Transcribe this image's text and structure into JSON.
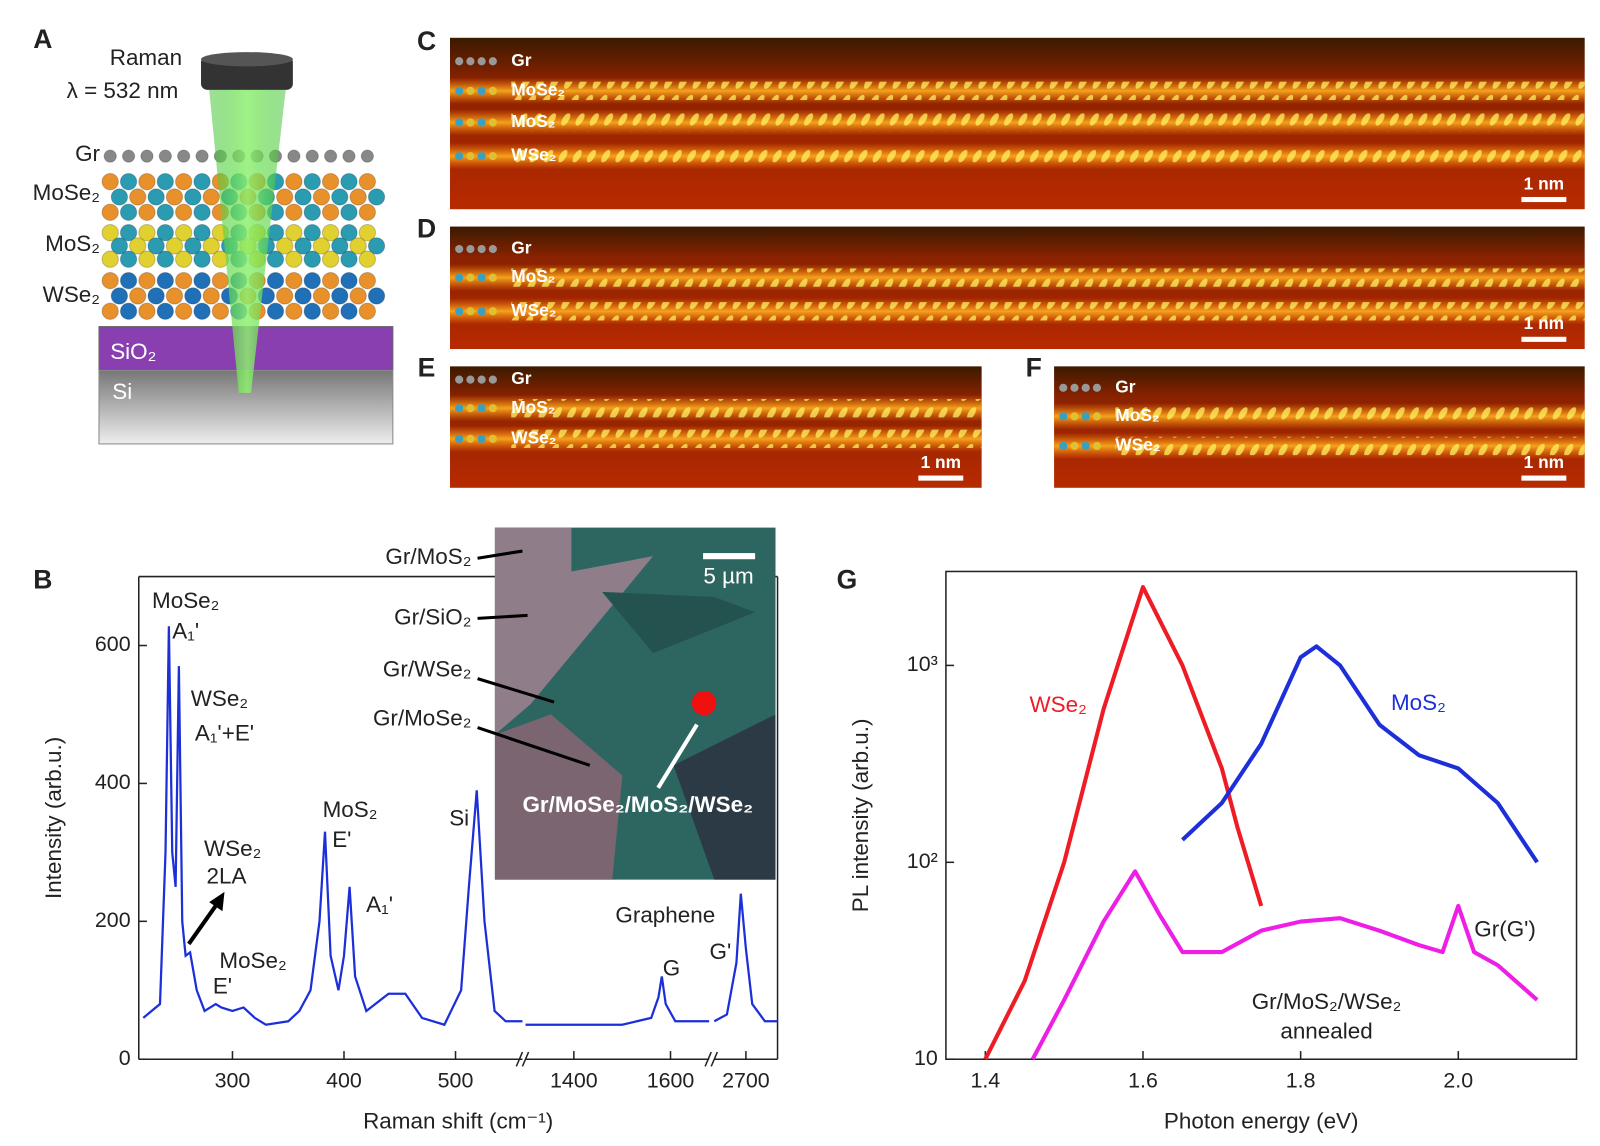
{
  "panel_a": {
    "label": "A",
    "laser": "Raman",
    "wavelength": "λ = 532 nm",
    "layers": [
      "Gr",
      "MoSe₂",
      "MoS₂",
      "WSe₂"
    ],
    "substrate": [
      "SiO₂",
      "Si"
    ]
  },
  "tem_panels": [
    {
      "label": "C",
      "layers": [
        "Gr",
        "MoSe₂",
        "MoS₂",
        "WSe₂"
      ],
      "scale_bar": "1 nm"
    },
    {
      "label": "D",
      "layers": [
        "Gr",
        "MoS₂",
        "WSe₂"
      ],
      "scale_bar": "1 nm"
    },
    {
      "label": "E",
      "layers": [
        "Gr",
        "MoS₂",
        "WSe₂"
      ],
      "scale_bar": "1 nm"
    },
    {
      "label": "F",
      "layers": [
        "Gr",
        "MoS₂",
        "WSe₂"
      ],
      "scale_bar": "1 nm"
    }
  ],
  "chart_data": [
    {
      "type": "line",
      "label": "B",
      "x_label": "Raman shift (cm⁻¹)",
      "y_label": "Intensity (arb.u.)",
      "color": "#1c2fd8",
      "ylim": [
        0,
        700
      ],
      "yticks": [
        0,
        200,
        400,
        600
      ],
      "segments": [
        {
          "xlim": [
            216,
            560
          ],
          "xticks": [
            300,
            400,
            500
          ],
          "x": [
            220,
            235,
            240,
            243,
            246,
            249,
            252,
            255,
            258,
            262,
            268,
            275,
            285,
            290,
            300,
            310,
            320,
            330,
            350,
            360,
            370,
            378,
            383,
            388,
            395,
            400,
            405,
            410,
            420,
            440,
            455,
            470,
            490,
            505,
            512,
            519,
            526,
            535,
            545,
            560
          ],
          "values": [
            60,
            80,
            300,
            628,
            300,
            250,
            570,
            200,
            150,
            155,
            100,
            70,
            80,
            75,
            70,
            75,
            60,
            50,
            55,
            70,
            100,
            200,
            330,
            150,
            100,
            150,
            250,
            120,
            70,
            95,
            95,
            60,
            50,
            100,
            250,
            390,
            200,
            70,
            55,
            55
          ]
        },
        {
          "xlim": [
            1300,
            1680
          ],
          "xticks": [
            1400,
            1600
          ],
          "x": [
            1300,
            1400,
            1500,
            1560,
            1575,
            1582,
            1590,
            1610,
            1680
          ],
          "values": [
            50,
            50,
            50,
            60,
            90,
            120,
            80,
            55,
            55
          ]
        },
        {
          "xlim": [
            2650,
            2750
          ],
          "xticks": [
            2700
          ],
          "x": [
            2650,
            2670,
            2685,
            2692,
            2700,
            2710,
            2730,
            2750
          ],
          "values": [
            55,
            65,
            140,
            240,
            160,
            80,
            55,
            55
          ]
        }
      ],
      "annotations": [
        "MoSe₂",
        "A₁'",
        "WSe₂",
        "A₁'+E'",
        "WSe₂",
        "2LA",
        "MoSe₂",
        "E'",
        "MoS₂",
        "E'",
        "A₁'",
        "Si",
        "Graphene",
        "G",
        "G'"
      ],
      "inset": {
        "labels": [
          "Gr/MoS₂",
          "Gr/SiO₂",
          "Gr/WSe₂",
          "Gr/MoSe₂"
        ],
        "scale_bar": "5 µm",
        "spot": "Gr/MoSe₂/MoS₂/WSe₂"
      }
    },
    {
      "type": "line",
      "label": "G",
      "x_label": "Photon energy (eV)",
      "y_label": "PL intensity (arb.u.)",
      "log_y": true,
      "xlim": [
        1.35,
        2.15
      ],
      "xticks": [
        1.4,
        1.6,
        1.8,
        {
          "value": 2,
          "label": "2.0"
        }
      ],
      "ylim": [
        10,
        3000
      ],
      "yticks": [
        10,
        {
          "value": 100,
          "label": "10²"
        },
        {
          "value": 1000,
          "label": "10³"
        }
      ],
      "series": [
        {
          "name": "WSe₂",
          "color": "#ee1c24",
          "x": [
            1.4,
            1.45,
            1.5,
            1.55,
            1.6,
            1.65,
            1.7,
            1.72,
            1.75
          ],
          "values": [
            10,
            25,
            100,
            600,
            2500,
            1000,
            300,
            150,
            60
          ]
        },
        {
          "name": "MoS₂",
          "color": "#1c2fd8",
          "x": [
            1.65,
            1.7,
            1.75,
            1.8,
            1.82,
            1.85,
            1.9,
            1.95,
            2.0,
            2.05,
            2.1
          ],
          "values": [
            130,
            200,
            400,
            1100,
            1250,
            1000,
            500,
            350,
            300,
            200,
            100
          ]
        },
        {
          "name": "Gr/MoS₂/WSe₂",
          "color": "#ee1ee6",
          "x": [
            1.46,
            1.5,
            1.55,
            1.59,
            1.62,
            1.65,
            1.7,
            1.75,
            1.8,
            1.85,
            1.9,
            1.95,
            1.98,
            2.0,
            2.02,
            2.05,
            2.1
          ],
          "values": [
            10,
            20,
            50,
            90,
            55,
            35,
            35,
            45,
            50,
            52,
            45,
            38,
            35,
            60,
            35,
            30,
            20
          ]
        }
      ],
      "annotations": [
        "annealed",
        "Gr(G')"
      ]
    }
  ]
}
